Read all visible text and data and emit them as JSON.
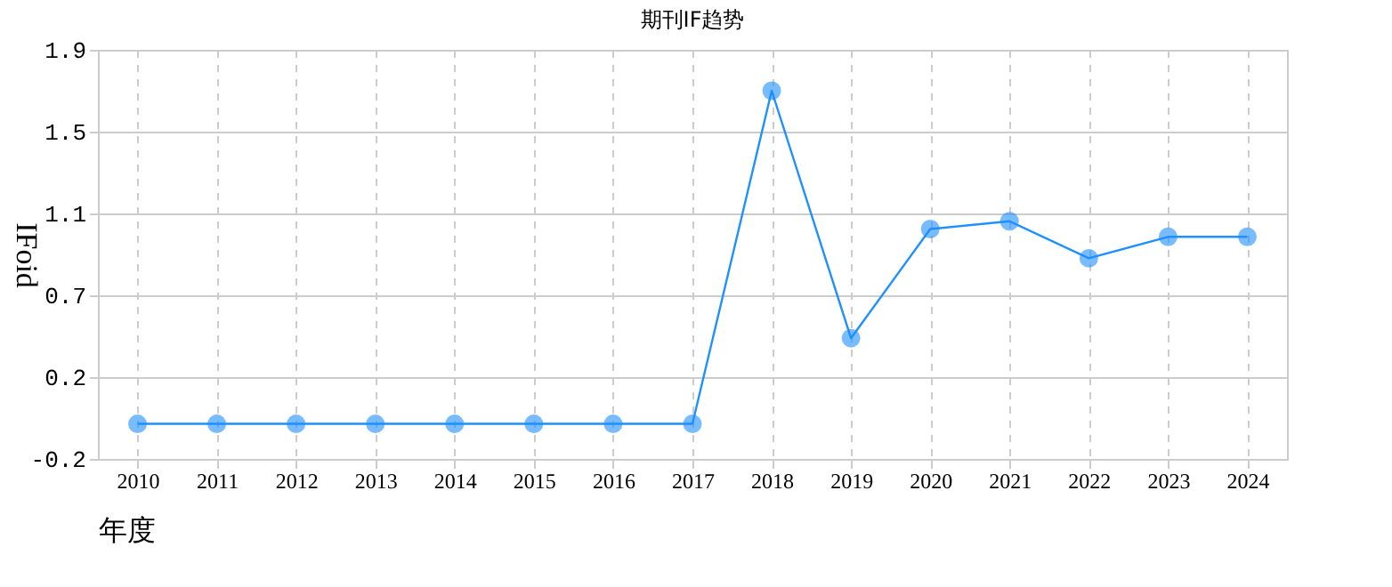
{
  "chart_data": {
    "type": "line",
    "title": "期刊IF趋势",
    "xlabel": "年度",
    "ylabel": "IFoid",
    "categories": [
      "2010",
      "2011",
      "2012",
      "2013",
      "2014",
      "2015",
      "2016",
      "2017",
      "2018",
      "2019",
      "2020",
      "2021",
      "2022",
      "2023",
      "2024"
    ],
    "series": [
      {
        "color": "#1e90ff",
        "values": [
          0,
          0,
          0,
          0,
          0,
          0,
          0,
          0,
          1.71,
          0.44,
          1.0,
          1.04,
          0.85,
          0.96,
          0.96
        ]
      }
    ],
    "ylim": [
      -0.18,
      1.92
    ],
    "yticks": [
      {
        "value": -0.18,
        "label": "-0.2"
      },
      {
        "value": 0.24,
        "label": "0.2"
      },
      {
        "value": 0.66,
        "label": "0.7"
      },
      {
        "value": 1.08,
        "label": "1.1"
      },
      {
        "value": 1.5,
        "label": "1.5"
      },
      {
        "value": 1.92,
        "label": "1.9"
      }
    ],
    "grid": true,
    "marker": "circle",
    "line_style": "solid"
  }
}
